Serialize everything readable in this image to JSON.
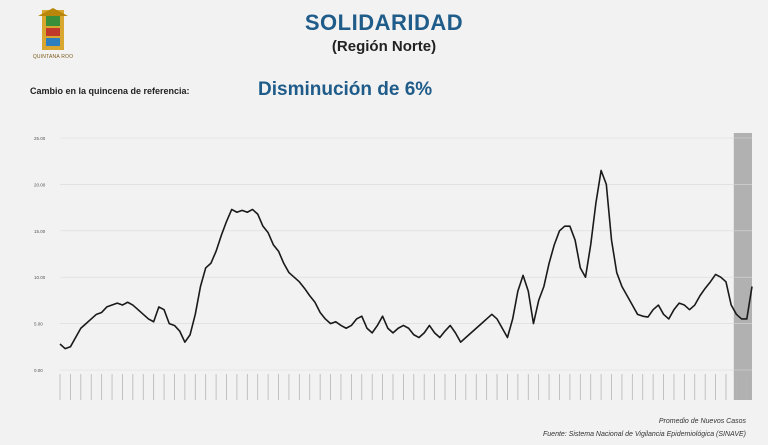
{
  "header": {
    "title": "SOLIDARIDAD",
    "subtitle": "(Región Norte)",
    "logo_caption": "QUINTANA ROO"
  },
  "change": {
    "label": "Cambio en la quincena de referencia:",
    "value": "Disminución de 6%"
  },
  "footer": {
    "legend": "Promedio de Nuevos Casos",
    "source": "Fuente: Sistema Nacional de Vigilancia Epidemiológica (SINAVE)"
  },
  "colors": {
    "title": "#1f5c8a",
    "line": "#1a1a1a",
    "highlight": "#a6a6a6",
    "grid": "#d9d9d9"
  },
  "chart_data": {
    "type": "line",
    "yticks": [
      "0.00",
      "5.00",
      "10.00",
      "15.00",
      "20.00",
      "25.00"
    ],
    "ylim": [
      0,
      25
    ],
    "grid": true,
    "highlight_last_n": 4,
    "series": [
      {
        "values": [
          2.8,
          2.3,
          2.5,
          3.5,
          4.5,
          5.0,
          5.5,
          6.0,
          6.2,
          6.8,
          7.0,
          7.2,
          7.0,
          7.3,
          7.0,
          6.5,
          6.0,
          5.5,
          5.2,
          6.8,
          6.5,
          5.0,
          4.8,
          4.2,
          3.0,
          3.8,
          6.0,
          9.0,
          11.0,
          11.5,
          12.8,
          14.5,
          16.0,
          17.3,
          17.0,
          17.2,
          17.0,
          17.3,
          16.8,
          15.5,
          14.8,
          13.5,
          12.8,
          11.5,
          10.5,
          10.0,
          9.5,
          8.8,
          8.0,
          7.3,
          6.2,
          5.5,
          5.0,
          5.2,
          4.8,
          4.5,
          4.8,
          5.5,
          5.8,
          4.5,
          4.0,
          4.8,
          5.8,
          4.5,
          4.0,
          4.5,
          4.8,
          4.5,
          3.8,
          3.5,
          4.0,
          4.8,
          4.0,
          3.5,
          4.2,
          4.8,
          4.0,
          3.0,
          3.5,
          4.0,
          4.5,
          5.0,
          5.5,
          6.0,
          5.5,
          4.5,
          3.5,
          5.5,
          8.5,
          10.2,
          8.5,
          5.0,
          7.5,
          9.0,
          11.5,
          13.5,
          15.0,
          15.5,
          15.5,
          14.0,
          11.0,
          10.0,
          13.5,
          18.0,
          21.5,
          20.0,
          14.0,
          10.5,
          9.0,
          8.0,
          7.0,
          6.0,
          5.8,
          5.7,
          6.5,
          7.0,
          6.0,
          5.5,
          6.5,
          7.2,
          7.0,
          6.5,
          7.0,
          8.0,
          8.8,
          9.5,
          10.3,
          10.0,
          9.5,
          7.0,
          6.0,
          5.5,
          5.5,
          9.0
        ]
      }
    ]
  }
}
